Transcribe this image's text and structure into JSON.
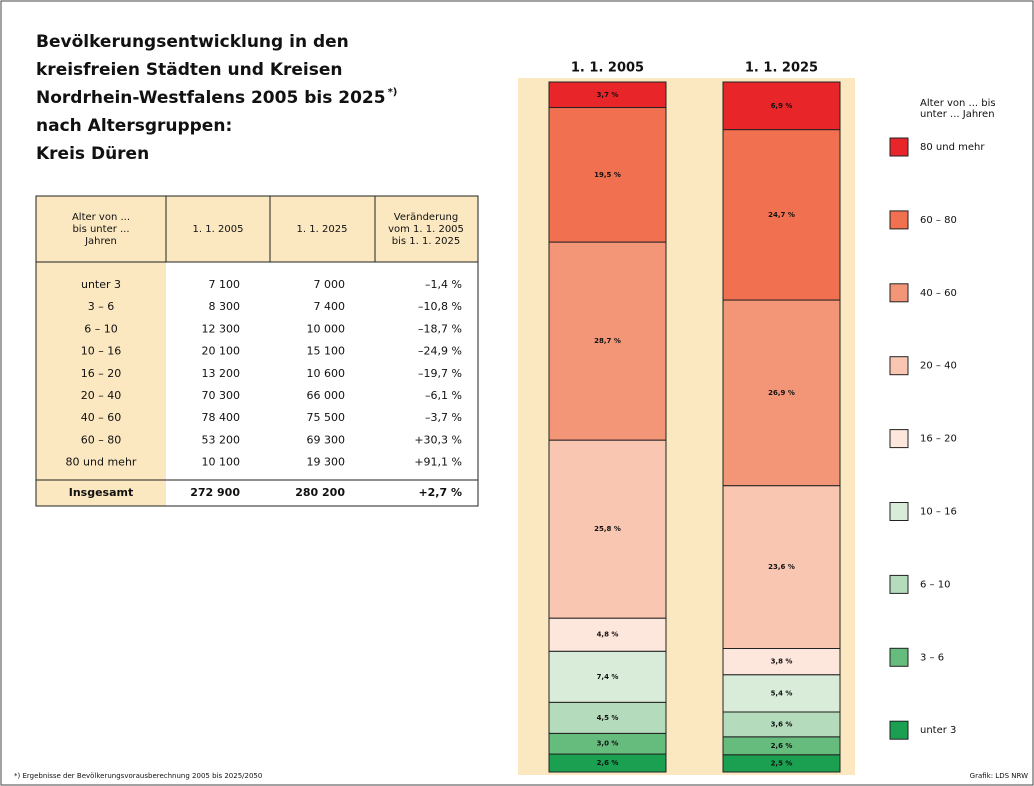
{
  "title_lines": [
    "Bevölkerungsentwicklung in den",
    "kreisfreien Städten und Kreisen",
    "Nordrhein-Westfalens 2005 bis 2025",
    "nach Altersgruppen:",
    "Kreis Düren"
  ],
  "title_note": "*)",
  "table": {
    "header": [
      [
        "Alter von ...",
        "bis unter ...",
        "Jahren"
      ],
      [
        "1. 1. 2005"
      ],
      [
        "1. 1. 2025"
      ],
      [
        "Veränderung",
        "vom 1. 1. 2005",
        "bis 1. 1. 2025"
      ]
    ],
    "rows": [
      [
        "unter 3",
        "7 100",
        "7 000",
        "–1,4 %"
      ],
      [
        "3 – 6",
        "8 300",
        "7 400",
        "–10,8 %"
      ],
      [
        "6 – 10",
        "12 300",
        "10 000",
        "–18,7 %"
      ],
      [
        "10 – 16",
        "20 100",
        "15 100",
        "–24,9 %"
      ],
      [
        "16 – 20",
        "13 200",
        "10 600",
        "–19,7 %"
      ],
      [
        "20 – 40",
        "70 300",
        "66 000",
        "–6,1 %"
      ],
      [
        "40 – 60",
        "78 400",
        "75 500",
        "–3,7 %"
      ],
      [
        "60 – 80",
        "53 200",
        "69 300",
        "+30,3 %"
      ],
      [
        "80 und mehr",
        "10 100",
        "19 300",
        "+91,1 %"
      ]
    ],
    "total": [
      "Insgesamt",
      "272 900",
      "280 200",
      "+2,7 %"
    ]
  },
  "chart_data": {
    "type": "stacked_bar",
    "categories": [
      "1. 1. 2005",
      "1. 1. 2025"
    ],
    "legend_title": [
      "Alter von ... bis",
      "unter ... Jahren"
    ],
    "legend": "right",
    "series": [
      {
        "name": "unter 3",
        "color": "#1aa050",
        "values": [
          2.6,
          2.5
        ],
        "value_labels": [
          "2,6 %",
          "2,5 %"
        ]
      },
      {
        "name": "3 – 6",
        "color": "#66bc7c",
        "values": [
          3.0,
          2.6
        ],
        "value_labels": [
          "3,0 %",
          "2,6 %"
        ]
      },
      {
        "name": "6 – 10",
        "color": "#b4dbbb",
        "values": [
          4.5,
          3.6
        ],
        "value_labels": [
          "4,5 %",
          "3,6 %"
        ]
      },
      {
        "name": "10 – 16",
        "color": "#d8ecd9",
        "values": [
          7.4,
          5.4
        ],
        "value_labels": [
          "7,4 %",
          "5,4 %"
        ]
      },
      {
        "name": "16 – 20",
        "color": "#fde6dc",
        "values": [
          4.8,
          3.8
        ],
        "value_labels": [
          "4,8 %",
          "3,8 %"
        ]
      },
      {
        "name": "20 – 40",
        "color": "#f9c6b1",
        "values": [
          25.8,
          23.6
        ],
        "value_labels": [
          "25,8 %",
          "23,6 %"
        ]
      },
      {
        "name": "40 – 60",
        "color": "#f29677",
        "values": [
          28.7,
          26.9
        ],
        "value_labels": [
          "28,7 %",
          "26,9 %"
        ]
      },
      {
        "name": "60 – 80",
        "color": "#f07050",
        "values": [
          19.5,
          24.7
        ],
        "value_labels": [
          "19,5 %",
          "24,7 %"
        ]
      },
      {
        "name": "80 und mehr",
        "color": "#e8262a",
        "values": [
          3.7,
          6.9
        ],
        "value_labels": [
          "3,7 %",
          "6,9 %"
        ]
      }
    ]
  },
  "footnote": "*) Ergebnisse der Bevölkerungsvorausberechnung 2005 bis 2025/2050",
  "source": "Grafik: LDS NRW"
}
